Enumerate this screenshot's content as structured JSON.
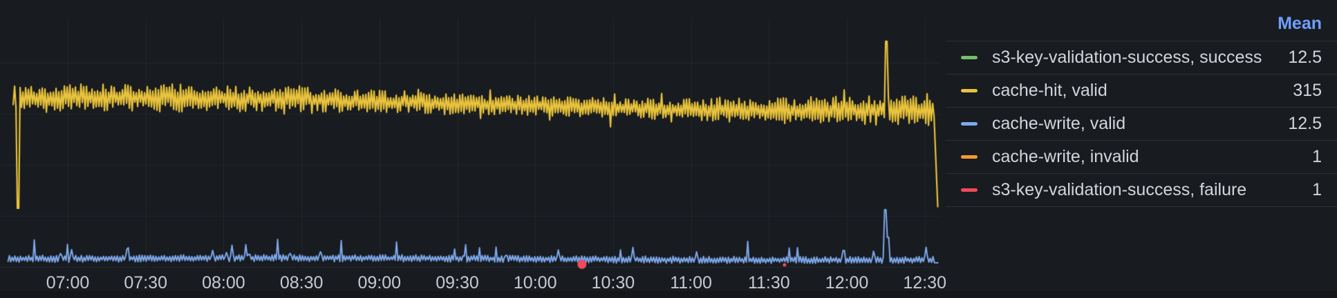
{
  "panel": {
    "background_color": "#181b1f",
    "grid_color": "rgba(204,204,220,0.07)",
    "axis_text_color": "#c8c9d3",
    "legend_text_color": "#d4d5dc",
    "mean_header_color": "#6e9fff"
  },
  "chart_data": {
    "type": "line",
    "title": "",
    "x_axis": {
      "ticks": [
        "07:00",
        "07:30",
        "08:00",
        "08:30",
        "09:00",
        "09:30",
        "10:00",
        "10:30",
        "11:00",
        "11:30",
        "12:00",
        "12:30"
      ],
      "visible_start": "06:37",
      "visible_end": "12:36",
      "grid": true
    },
    "y_axis": {
      "min": 0,
      "max": 500,
      "gridline_values": [
        100,
        200,
        300,
        400
      ],
      "tick_labels_visible": false,
      "grid": true
    },
    "legend_position": "right-table",
    "series": [
      {
        "name": "s3-key-validation-success, success",
        "color": "#73bf69",
        "mean": 12.5,
        "visible_in_plot": false,
        "note": "line coincides with cache-write, valid"
      },
      {
        "name": "cache-hit, valid",
        "color": "#e9c33c",
        "mean": 315,
        "visible_in_plot": true,
        "render": {
          "kind": "noisy-line",
          "base": 316,
          "start": "06:39",
          "end": "12:35",
          "start_dip": {
            "time": "06:41",
            "value": 115
          },
          "spike": {
            "time": "12:15",
            "value": 442
          },
          "end_drop_value": 118
        }
      },
      {
        "name": "cache-write, valid",
        "color": "#7ea9ec",
        "mean": 12.5,
        "visible_in_plot": true,
        "render": {
          "kind": "noisy-line",
          "base": 15.5,
          "start": "06:37",
          "end": "12:35",
          "spike": {
            "time": "12:15",
            "value": 112
          },
          "end_drop_value": 8
        }
      },
      {
        "name": "cache-write, invalid",
        "color": "#ff9830",
        "mean": 1,
        "visible_in_plot": false,
        "note": "values near zero, hidden at axis"
      },
      {
        "name": "s3-key-validation-success, failure",
        "color": "#f2495c",
        "mean": 1,
        "visible_in_plot": true,
        "render": {
          "kind": "points",
          "points": [
            {
              "time": "10:18",
              "value": 5,
              "radius": 6.5
            },
            {
              "time": "11:36",
              "value": 4,
              "radius": 2.5
            }
          ]
        }
      }
    ]
  },
  "legend": {
    "mean_header": "Mean"
  }
}
